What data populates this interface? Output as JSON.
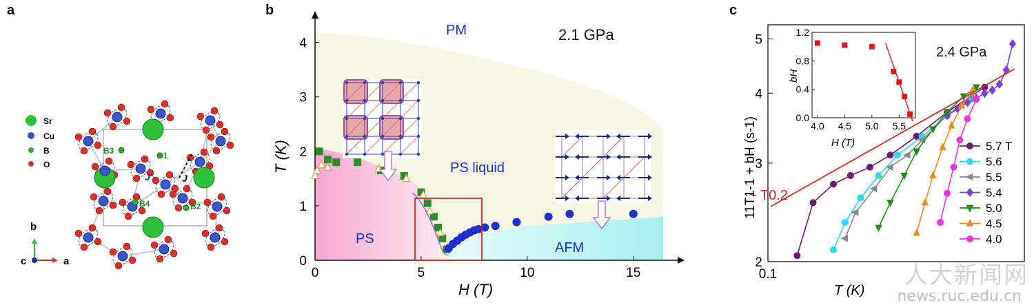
{
  "panel_a": {
    "letter": "a",
    "legend": [
      {
        "label": "Sr",
        "color": "#2fbf3a"
      },
      {
        "label": "Cu",
        "color": "#3a56c8"
      },
      {
        "label": "B",
        "color": "#3aa83a"
      },
      {
        "label": "O",
        "color": "#d8312a"
      }
    ],
    "bond_labels": [
      "B1",
      "B2",
      "B3",
      "B4"
    ],
    "coupling_labels": [
      "J",
      "J'"
    ],
    "axes": {
      "b": "b",
      "c": "c",
      "a": "a"
    }
  },
  "panel_b": {
    "letter": "b",
    "pressure": "2.1 GPa",
    "region_labels": {
      "pm": "PM",
      "ps_liquid": "PS liquid",
      "ps": "PS",
      "afm": "AFM"
    },
    "xlabel": "H (T)",
    "ylabel": "T (K)"
  },
  "panel_c": {
    "letter": "c",
    "pressure": "2.4 GPa",
    "ylabel": "11T1-1 + bH (s-1)",
    "xlabel": "T (K)",
    "power_law": "~ T0.2",
    "inset": {
      "xlabel": "H (T)",
      "ylabel": "bH"
    }
  },
  "chart_data": [
    {
      "type": "scatter",
      "xlabel": "H (T)",
      "ylabel": "T (K)",
      "xlim": [
        0,
        16.5
      ],
      "ylim": [
        0,
        4.4
      ],
      "xticks": [
        0,
        5,
        10,
        15
      ],
      "yticks": [
        0,
        1,
        2,
        3,
        4
      ],
      "series": [
        {
          "name": "",
          "marker": "square",
          "color": "#2e8b2e",
          "x": [
            0.2,
            0.6,
            1.0,
            2.0,
            3.1,
            4.2,
            5.0,
            5.3,
            5.6,
            5.8,
            6.0,
            6.2
          ],
          "y": [
            2.0,
            1.85,
            1.8,
            1.8,
            1.65,
            1.55,
            1.25,
            1.05,
            0.8,
            0.6,
            0.4,
            0.2
          ]
        },
        {
          "name": "",
          "marker": "triangle",
          "color": "#e39a2b",
          "x": [
            0.0,
            0.1,
            0.3,
            0.6,
            3.0,
            3.5,
            4.3,
            5.1,
            5.4,
            5.9
          ],
          "y": [
            1.55,
            1.65,
            1.75,
            1.7,
            1.68,
            1.6,
            1.5,
            1.2,
            0.9,
            0.5
          ]
        },
        {
          "name": "",
          "marker": "circle",
          "color": "#1f2fd0",
          "x": [
            6.3,
            6.5,
            6.7,
            6.9,
            7.1,
            7.3,
            7.5,
            7.7,
            8.0,
            8.5,
            9.5,
            11.0,
            12.0,
            15.0
          ],
          "y": [
            0.22,
            0.3,
            0.36,
            0.42,
            0.47,
            0.51,
            0.55,
            0.57,
            0.6,
            0.63,
            0.7,
            0.8,
            0.85,
            0.85
          ]
        }
      ]
    },
    {
      "type": "line",
      "xlabel": "T (K)",
      "ylabel": "11T1-1 + bH (s-1)",
      "xscale": "log",
      "yscale": "log",
      "xlim": [
        0.1,
        1.0
      ],
      "ylim": [
        2,
        5.3
      ],
      "yticks": [
        2,
        3,
        4,
        5
      ],
      "xticks": [
        0.1
      ],
      "series": [
        {
          "name": "5.7 T",
          "color": "#6b1e6e",
          "marker": "circle",
          "x": [
            0.13,
            0.15,
            0.18,
            0.21,
            0.25,
            0.3,
            0.38,
            0.5,
            0.7
          ],
          "y": [
            2.05,
            2.55,
            2.75,
            2.85,
            2.95,
            3.1,
            3.35,
            3.7,
            4.1
          ]
        },
        {
          "name": "5.6",
          "color": "#35d6f0",
          "marker": "circle",
          "x": [
            0.18,
            0.2,
            0.23,
            0.27,
            0.32,
            0.4,
            0.5,
            0.62
          ],
          "y": [
            2.1,
            2.35,
            2.6,
            2.85,
            3.1,
            3.35,
            3.65,
            3.9
          ]
        },
        {
          "name": "5.5",
          "color": "#8a8a8a",
          "marker": "triangle-left",
          "x": [
            0.2,
            0.22,
            0.26,
            0.3,
            0.35,
            0.4,
            0.5,
            0.62
          ],
          "y": [
            2.2,
            2.45,
            2.7,
            2.95,
            3.1,
            3.3,
            3.65,
            3.95
          ]
        },
        {
          "name": "5.4",
          "color": "#7a3ee0",
          "marker": "diamond",
          "x": [
            0.5,
            0.55,
            0.6,
            0.65,
            0.7,
            0.75,
            0.8,
            0.85,
            0.9
          ],
          "y": [
            3.65,
            3.75,
            3.85,
            3.92,
            4.0,
            4.05,
            4.15,
            4.4,
            4.9
          ]
        },
        {
          "name": "5.0",
          "color": "#1f8a1f",
          "marker": "triangle-down",
          "x": [
            0.27,
            0.3,
            0.34,
            0.38,
            0.44,
            0.5,
            0.58,
            0.65
          ],
          "y": [
            2.3,
            2.55,
            2.85,
            3.15,
            3.45,
            3.7,
            3.95,
            4.1
          ]
        },
        {
          "name": "4.5",
          "color": "#f08c1a",
          "marker": "triangle",
          "x": [
            0.38,
            0.41,
            0.44,
            0.48,
            0.52,
            0.57,
            0.63
          ],
          "y": [
            2.25,
            2.55,
            2.85,
            3.2,
            3.5,
            3.8,
            4.05
          ]
        },
        {
          "name": "4.0",
          "color": "#e838d8",
          "marker": "circle",
          "x": [
            0.47,
            0.5,
            0.53,
            0.56,
            0.6,
            0.65
          ],
          "y": [
            2.35,
            2.65,
            2.95,
            3.3,
            3.6,
            3.9
          ]
        }
      ],
      "inset": {
        "type": "scatter",
        "xlabel": "H (T)",
        "ylabel": "bH",
        "xlim": [
          3.9,
          5.8
        ],
        "ylim": [
          0,
          1.2
        ],
        "xticks": [
          4.0,
          4.5,
          5.0,
          5.5
        ],
        "yticks": [
          0.0,
          0.4,
          0.8,
          1.2
        ],
        "x": [
          4.0,
          4.5,
          5.0,
          5.4,
          5.5,
          5.6,
          5.7
        ],
        "y": [
          1.05,
          1.02,
          1.0,
          0.65,
          0.5,
          0.3,
          0.05
        ]
      }
    }
  ],
  "watermark": {
    "line1": "人大新闻网",
    "line2": "news.ruc.edu.cn"
  }
}
